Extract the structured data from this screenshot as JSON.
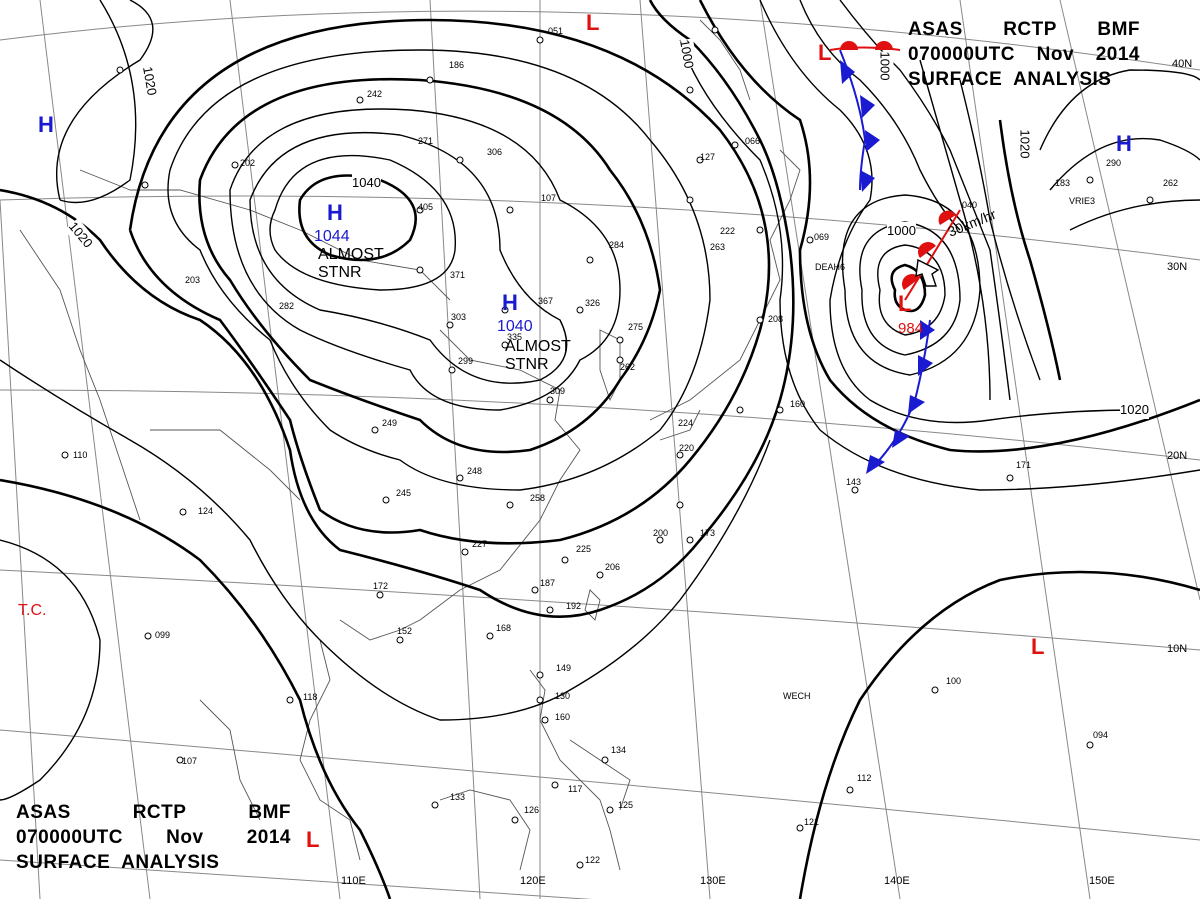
{
  "header_top": {
    "line1": [
      "ASAS",
      "RCTP",
      "BMF"
    ],
    "line2": [
      "070000UTC",
      "Nov",
      "2014"
    ],
    "line3": "SURFACE  ANALYSIS"
  },
  "header_bottom": {
    "line1": [
      "ASAS",
      "RCTP",
      "BMF"
    ],
    "line2": [
      "070000UTC",
      "Nov",
      "2014"
    ],
    "line3": "SURFACE  ANALYSIS"
  },
  "pressure_systems": {
    "high_main": {
      "symbol": "H",
      "value": "1044",
      "status": "ALMOST STNR"
    },
    "high_secondary": {
      "symbol": "H",
      "value": "1040",
      "status": "ALMOST STNR"
    },
    "high_west": {
      "symbol": "H"
    },
    "high_east": {
      "symbol": "H"
    },
    "low_typhoon": {
      "symbol": "L",
      "value": "984",
      "motion": "30km/hr"
    },
    "low_north": {
      "symbol": "L"
    },
    "low_northeast": {
      "symbol": "L"
    },
    "low_pacific": {
      "symbol": "L"
    },
    "low_legend": {
      "symbol": "L"
    }
  },
  "tropical_cyclone_label": "T.C.",
  "isobar_labels": [
    "1040",
    "1020",
    "1020",
    "1020",
    "1020",
    "1000",
    "1000",
    "1000"
  ],
  "longitude_labels": [
    "110E",
    "120E",
    "130E",
    "140E",
    "150E"
  ],
  "latitude_labels": [
    "30N",
    "20N",
    "10N",
    "40N"
  ],
  "station_labels": [
    "DEAH6",
    "WECH",
    "VRIE3"
  ],
  "colors": {
    "high": "#1a1ad0",
    "low": "#e01010",
    "isobar": "#000000",
    "grid": "#777777",
    "coast": "#666666"
  },
  "station_plots": [
    "051",
    "306",
    "371",
    "326",
    "405",
    "284",
    "107",
    "242",
    "186",
    "275",
    "262",
    "309",
    "335",
    "367",
    "303",
    "299",
    "249",
    "248",
    "245",
    "258",
    "227",
    "225",
    "206",
    "187",
    "192",
    "168",
    "172",
    "152",
    "149",
    "130",
    "160",
    "118",
    "110",
    "124",
    "099",
    "107",
    "133",
    "126",
    "125",
    "122",
    "134",
    "117",
    "100",
    "094",
    "121",
    "112",
    "143",
    "171",
    "173",
    "200",
    "220",
    "224",
    "208",
    "160",
    "203",
    "282",
    "263",
    "271",
    "202",
    "222",
    "066",
    "069",
    "127",
    "290",
    "262",
    "183",
    "040"
  ]
}
